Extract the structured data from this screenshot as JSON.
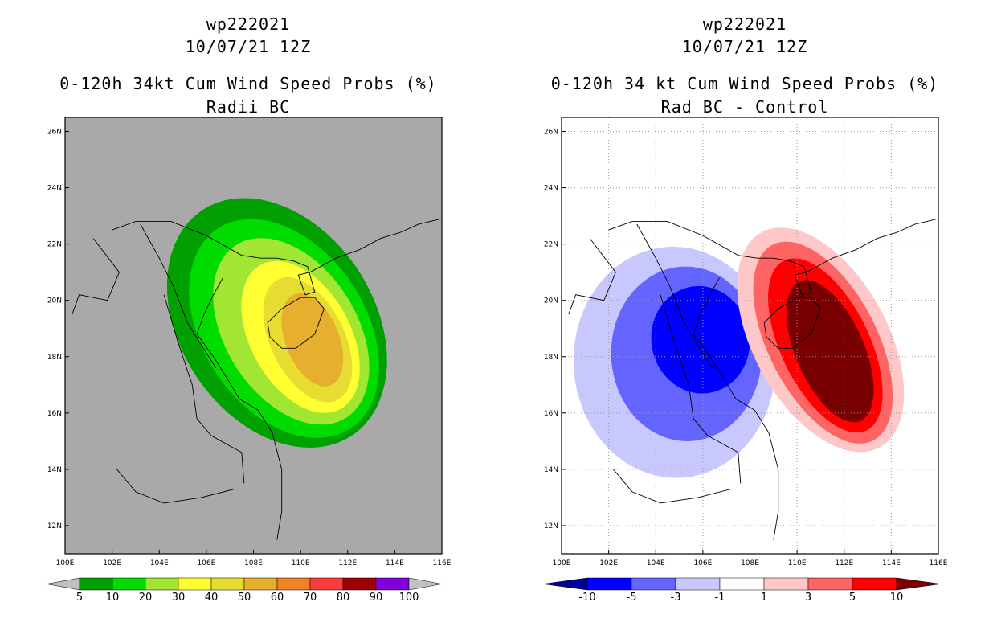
{
  "panels": [
    {
      "storm_id": "wp222021",
      "date_time": "10/07/21 12Z",
      "title": "0-120h 34kt Cum Wind Speed Probs (%)",
      "subtitle": "Radii BC",
      "background": "#a9a9a9",
      "grid": false,
      "colorbar": {
        "colors": [
          "#c0c0c0",
          "#00a000",
          "#00dc00",
          "#a0e632",
          "#ffff32",
          "#e6dc32",
          "#e6af2d",
          "#f08228",
          "#fa3c3c",
          "#a00000",
          "#8200dc",
          "#c0c0c0"
        ],
        "labels": [
          "5",
          "10",
          "20",
          "30",
          "40",
          "50",
          "60",
          "70",
          "80",
          "90",
          "100"
        ]
      }
    },
    {
      "storm_id": "wp222021",
      "date_time": "10/07/21 12Z",
      "title": "0-120h 34 kt Cum Wind Speed Probs (%)",
      "subtitle": "Rad BC - Control",
      "background": "#ffffff",
      "grid": true,
      "colorbar": {
        "colors": [
          "#000096",
          "#0000ff",
          "#6464ff",
          "#c8c8ff",
          "#ffffff",
          "#ffc8c8",
          "#ff6464",
          "#ff0000",
          "#780000"
        ],
        "labels": [
          "-10",
          "-5",
          "-3",
          "-1",
          "1",
          "3",
          "5",
          "10"
        ]
      }
    }
  ],
  "map": {
    "lon_range": [
      100,
      116
    ],
    "lat_range": [
      11,
      26.5
    ],
    "lon_ticks": [
      "100E",
      "102E",
      "104E",
      "106E",
      "108E",
      "110E",
      "112E",
      "114E",
      "116E"
    ],
    "lat_ticks": [
      "12N",
      "14N",
      "16N",
      "18N",
      "20N",
      "22N",
      "24N",
      "26N"
    ]
  }
}
